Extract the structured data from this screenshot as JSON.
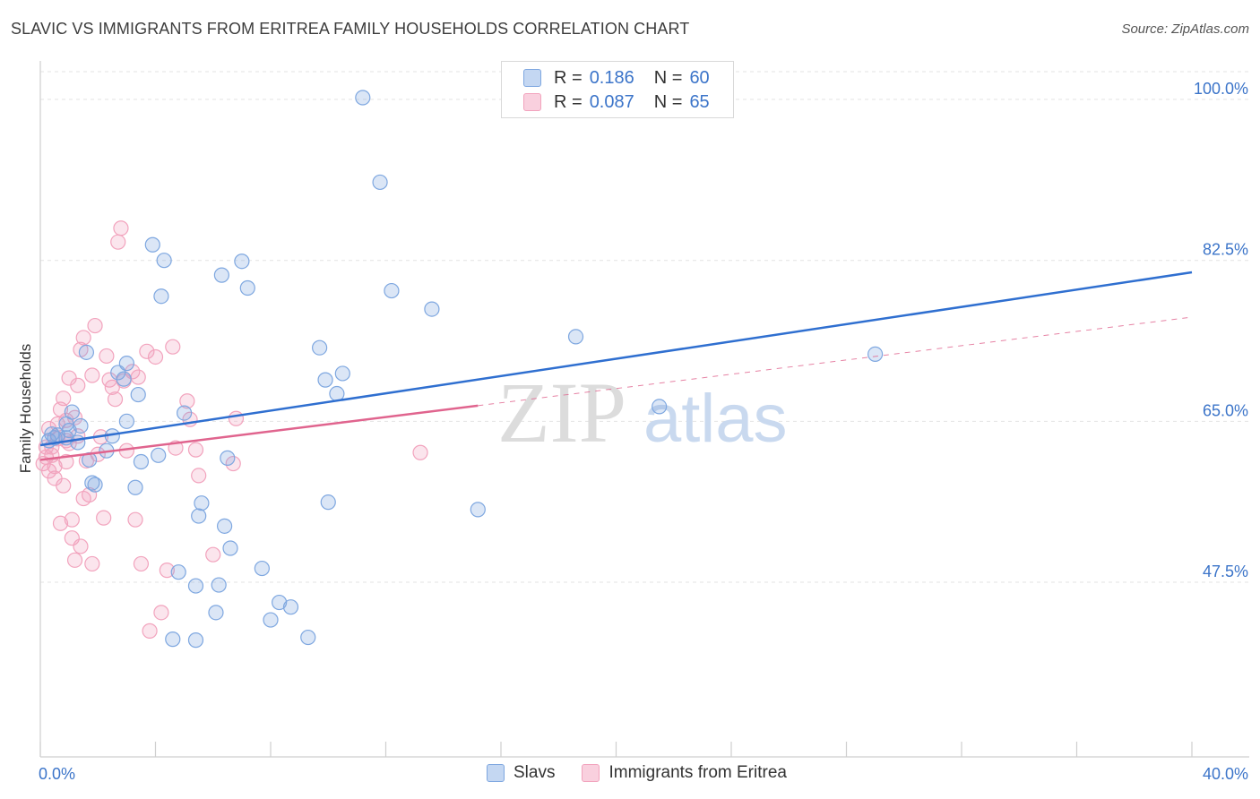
{
  "header": {
    "title": "SLAVIC VS IMMIGRANTS FROM ERITREA FAMILY HOUSEHOLDS CORRELATION CHART",
    "source": "Source: ZipAtlas.com"
  },
  "legend": {
    "rows": [
      {
        "r_label": "R =",
        "r_value": "0.186",
        "n_label": "N =",
        "n_value": "60"
      },
      {
        "r_label": "R =",
        "r_value": "0.087",
        "n_label": "N =",
        "n_value": "65"
      }
    ]
  },
  "watermark": {
    "zip": "ZIP",
    "atlas": "atlas"
  },
  "chart_data": {
    "type": "scatter",
    "title": "SLAVIC VS IMMIGRANTS FROM ERITREA FAMILY HOUSEHOLDS CORRELATION CHART",
    "xlabel": "",
    "ylabel": "Family Households",
    "xlim": [
      0,
      40
    ],
    "ylim": [
      28.5,
      104
    ],
    "x_tick_labels": [
      "0.0%",
      "40.0%"
    ],
    "y_ticks": [
      47.5,
      65.0,
      82.5,
      100.0
    ],
    "y_tick_labels": [
      "47.5%",
      "65.0%",
      "82.5%",
      "100.0%"
    ],
    "grid": true,
    "colors": {
      "slavs": "#7ea7e0",
      "slavs_line": "#2f6fd0",
      "eritrea": "#f2a3bd",
      "eritrea_line": "#e0648e",
      "tick_label": "#3b74c9"
    },
    "series": [
      {
        "name": "Slavs",
        "r": 0.186,
        "n": 60,
        "trend": {
          "x": [
            0.0,
            40.0
          ],
          "y": [
            62.4,
            81.2
          ]
        },
        "points": [
          [
            0.3,
            62.9
          ],
          [
            0.4,
            63.6
          ],
          [
            0.5,
            63.2
          ],
          [
            0.6,
            63.5
          ],
          [
            0.9,
            63.2
          ],
          [
            0.9,
            64.7
          ],
          [
            1.0,
            64.0
          ],
          [
            1.1,
            66.0
          ],
          [
            1.3,
            62.7
          ],
          [
            1.4,
            64.5
          ],
          [
            1.6,
            72.5
          ],
          [
            1.7,
            60.8
          ],
          [
            1.8,
            58.3
          ],
          [
            1.9,
            58.1
          ],
          [
            2.3,
            61.8
          ],
          [
            2.5,
            63.4
          ],
          [
            2.7,
            70.3
          ],
          [
            2.9,
            69.6
          ],
          [
            3.0,
            71.3
          ],
          [
            3.0,
            65.0
          ],
          [
            3.3,
            57.8
          ],
          [
            3.4,
            67.9
          ],
          [
            3.5,
            60.6
          ],
          [
            3.9,
            84.2
          ],
          [
            4.1,
            61.3
          ],
          [
            4.2,
            78.6
          ],
          [
            4.3,
            82.5
          ],
          [
            4.6,
            41.3
          ],
          [
            4.8,
            48.6
          ],
          [
            5.0,
            65.9
          ],
          [
            5.4,
            41.2
          ],
          [
            5.4,
            47.1
          ],
          [
            5.5,
            54.7
          ],
          [
            5.6,
            56.1
          ],
          [
            6.1,
            44.2
          ],
          [
            6.2,
            47.2
          ],
          [
            6.3,
            80.9
          ],
          [
            6.4,
            53.6
          ],
          [
            6.5,
            61.0
          ],
          [
            6.6,
            51.2
          ],
          [
            7.0,
            82.4
          ],
          [
            7.2,
            79.5
          ],
          [
            7.7,
            49.0
          ],
          [
            8.0,
            43.4
          ],
          [
            8.3,
            45.3
          ],
          [
            8.7,
            44.8
          ],
          [
            9.3,
            41.5
          ],
          [
            9.7,
            73.0
          ],
          [
            9.9,
            69.5
          ],
          [
            10.0,
            56.2
          ],
          [
            10.3,
            68.0
          ],
          [
            10.5,
            70.2
          ],
          [
            11.2,
            100.2
          ],
          [
            11.8,
            91.0
          ],
          [
            12.2,
            79.2
          ],
          [
            13.6,
            77.2
          ],
          [
            15.2,
            55.4
          ],
          [
            18.6,
            74.2
          ],
          [
            21.5,
            66.6
          ],
          [
            29.0,
            72.3
          ]
        ]
      },
      {
        "name": "Immigrants from Eritrea",
        "r": 0.087,
        "n": 65,
        "trend": {
          "x": [
            0.0,
            15.2
          ],
          "y": [
            60.8,
            66.7
          ]
        },
        "points": [
          [
            0.1,
            60.4
          ],
          [
            0.2,
            62.2
          ],
          [
            0.2,
            61.1
          ],
          [
            0.3,
            59.6
          ],
          [
            0.3,
            64.2
          ],
          [
            0.4,
            61.3
          ],
          [
            0.4,
            62.2
          ],
          [
            0.5,
            58.8
          ],
          [
            0.5,
            60.1
          ],
          [
            0.6,
            63.1
          ],
          [
            0.6,
            64.7
          ],
          [
            0.7,
            66.3
          ],
          [
            0.7,
            53.9
          ],
          [
            0.8,
            67.5
          ],
          [
            0.8,
            58.0
          ],
          [
            0.9,
            65.1
          ],
          [
            0.9,
            62.9
          ],
          [
            0.9,
            60.6
          ],
          [
            1.0,
            62.6
          ],
          [
            1.0,
            69.7
          ],
          [
            1.1,
            54.3
          ],
          [
            1.1,
            52.3
          ],
          [
            1.2,
            65.4
          ],
          [
            1.2,
            49.9
          ],
          [
            1.3,
            63.4
          ],
          [
            1.3,
            68.9
          ],
          [
            1.4,
            72.8
          ],
          [
            1.4,
            51.4
          ],
          [
            1.5,
            74.1
          ],
          [
            1.5,
            56.6
          ],
          [
            1.6,
            60.7
          ],
          [
            1.7,
            57.0
          ],
          [
            1.8,
            70.0
          ],
          [
            1.8,
            49.5
          ],
          [
            1.9,
            75.4
          ],
          [
            2.0,
            61.4
          ],
          [
            2.1,
            63.3
          ],
          [
            2.2,
            54.5
          ],
          [
            2.3,
            72.1
          ],
          [
            2.4,
            69.5
          ],
          [
            2.5,
            68.7
          ],
          [
            2.6,
            67.4
          ],
          [
            2.7,
            84.5
          ],
          [
            2.8,
            86.0
          ],
          [
            2.9,
            69.4
          ],
          [
            3.0,
            61.8
          ],
          [
            3.2,
            70.4
          ],
          [
            3.3,
            54.3
          ],
          [
            3.4,
            69.8
          ],
          [
            3.5,
            49.5
          ],
          [
            3.7,
            72.6
          ],
          [
            3.8,
            42.2
          ],
          [
            4.0,
            72.0
          ],
          [
            4.2,
            44.2
          ],
          [
            4.4,
            48.8
          ],
          [
            4.6,
            73.1
          ],
          [
            4.7,
            62.1
          ],
          [
            5.1,
            67.2
          ],
          [
            5.2,
            65.2
          ],
          [
            5.4,
            61.9
          ],
          [
            5.5,
            59.1
          ],
          [
            6.0,
            50.5
          ],
          [
            6.7,
            60.4
          ],
          [
            6.8,
            65.3
          ],
          [
            13.2,
            61.6
          ]
        ]
      }
    ]
  },
  "bottom_legend": {
    "items": [
      "Slavs",
      "Immigrants from Eritrea"
    ]
  }
}
